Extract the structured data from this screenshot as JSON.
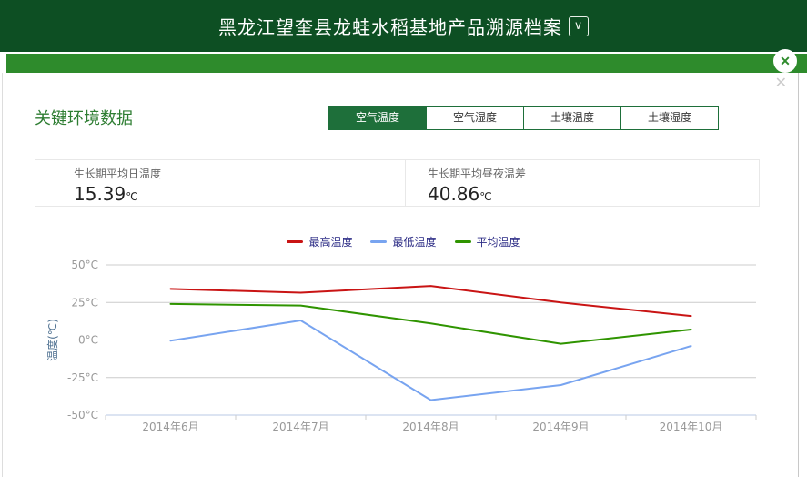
{
  "window": {
    "header_title": "黑龙江望奎县龙蛙水稻基地产品溯源档案",
    "dropdown_glyph": "∨",
    "close_glyph": "✕",
    "secondary_close_glyph": "✕"
  },
  "section": {
    "title": "关键环境数据",
    "tabs": [
      {
        "label": "空气温度",
        "active": true
      },
      {
        "label": "空气湿度",
        "active": false
      },
      {
        "label": "土壤温度",
        "active": false
      },
      {
        "label": "土壤湿度",
        "active": false
      }
    ]
  },
  "stats": {
    "cards": [
      {
        "label": "生长期平均日温度",
        "value": "15.39",
        "unit": "℃"
      },
      {
        "label": "生长期平均昼夜温差",
        "value": "40.86",
        "unit": "℃"
      }
    ]
  },
  "chart_data": {
    "type": "line",
    "categories": [
      "2014年6月",
      "2014年7月",
      "2014年8月",
      "2014年9月",
      "2014年10月"
    ],
    "series": [
      {
        "name": "最高温度",
        "color": "#c91414",
        "values": [
          34,
          31.5,
          36,
          25,
          16
        ]
      },
      {
        "name": "最低温度",
        "color": "#78a4f0",
        "values": [
          -0.5,
          13,
          -40,
          -30,
          -4
        ]
      },
      {
        "name": "平均温度",
        "color": "#2f9400",
        "values": [
          24,
          23,
          11,
          -2.5,
          7
        ]
      }
    ],
    "ylabel": "温度(℃)",
    "yticks": [
      50,
      25,
      0,
      -25,
      -50
    ],
    "ytick_suffix": "°C",
    "ylim": [
      -50,
      50
    ],
    "xlabel": "",
    "grid": true,
    "legend_position": "top-center"
  },
  "colors": {
    "header_bg": "#0d4f23",
    "strip_bg": "#2e8b2c",
    "accent_green": "#1e6f3a",
    "title_green": "#2e7d32",
    "legend_text": "#2d2d86",
    "axis_label": "#999999",
    "grid_line": "#cccccc",
    "axis_line": "#b9c9e4",
    "y_title": "#4f7191"
  }
}
